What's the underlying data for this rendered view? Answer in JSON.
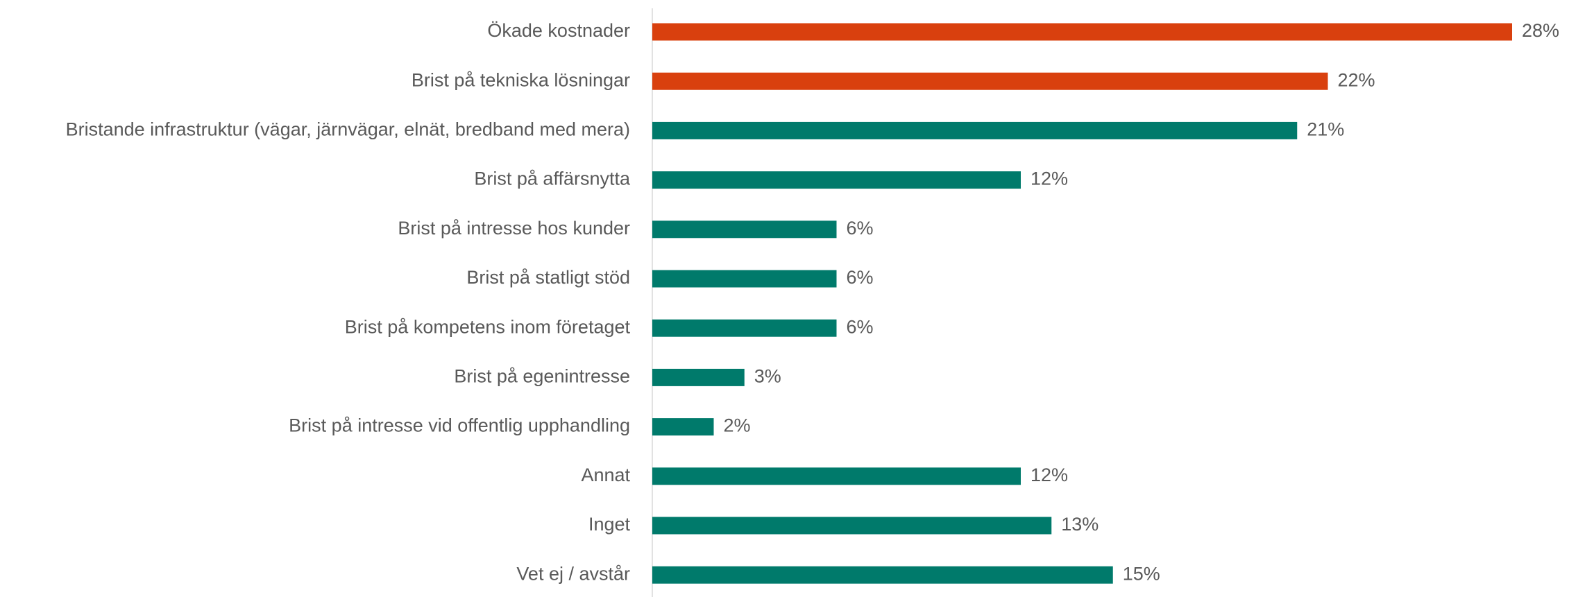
{
  "chart_data": {
    "type": "barh",
    "categories": [
      "Ökade kostnader",
      "Brist på tekniska lösningar",
      "Bristande infrastruktur (vägar, järnvägar, elnät, bredband med mera)",
      "Brist på affärsnytta",
      "Brist på intresse hos kunder",
      "Brist på statligt stöd",
      "Brist på kompetens inom företaget",
      "Brist på egenintresse",
      "Brist på intresse vid offentlig upphandling",
      "Annat",
      "Inget",
      "Vet ej / avstår"
    ],
    "values": [
      28,
      22,
      21,
      12,
      6,
      6,
      6,
      3,
      2,
      12,
      13,
      15
    ],
    "value_labels": [
      "28%",
      "22%",
      "21%",
      "12%",
      "6%",
      "6%",
      "6%",
      "3%",
      "2%",
      "12%",
      "13%",
      "15%"
    ],
    "colors": [
      "#d9400e",
      "#d9400e",
      "#007a6b",
      "#007a6b",
      "#007a6b",
      "#007a6b",
      "#007a6b",
      "#007a6b",
      "#007a6b",
      "#007a6b",
      "#007a6b",
      "#007a6b"
    ]
  }
}
